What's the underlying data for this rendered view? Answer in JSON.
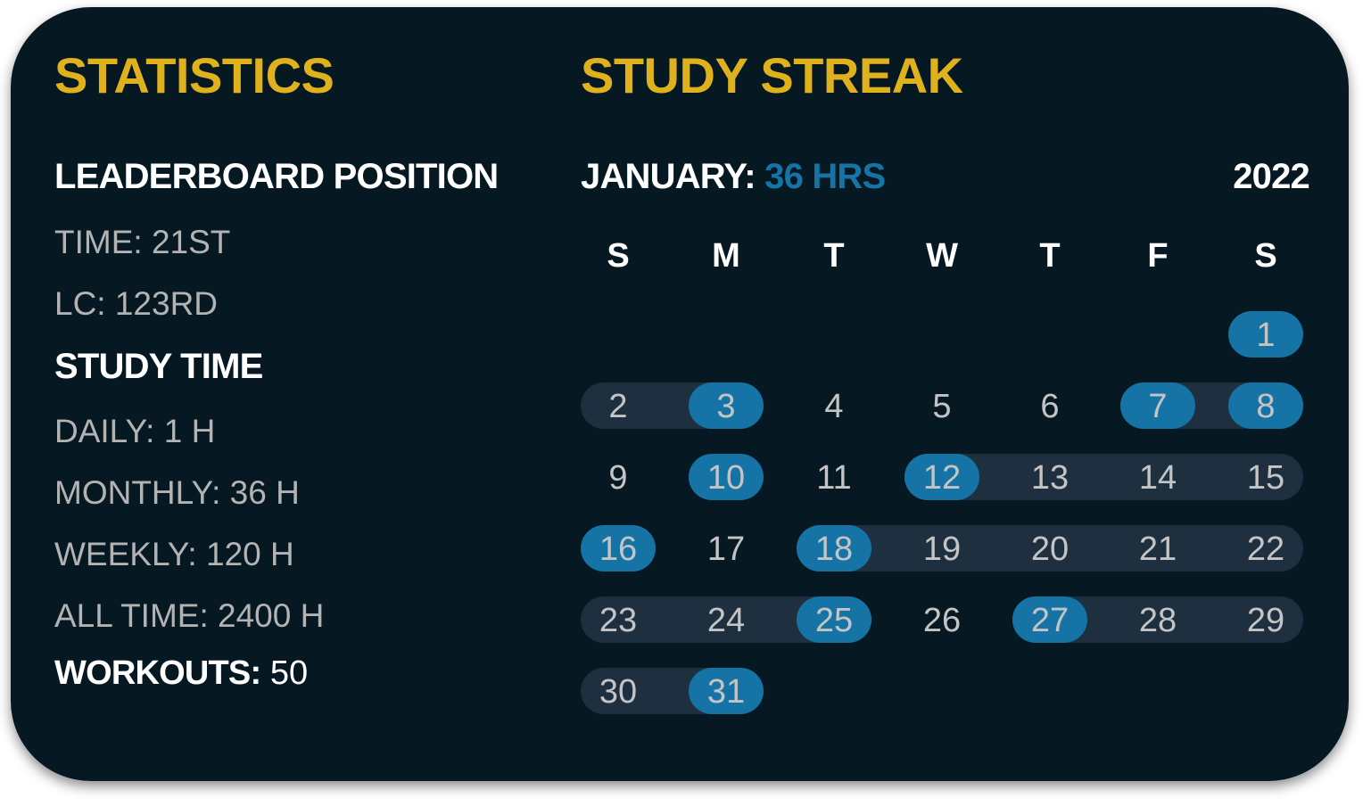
{
  "statistics": {
    "title": "STATISTICS",
    "leaderboard_heading": "LEADERBOARD POSITION",
    "leaderboard_time": "TIME: 21ST",
    "leaderboard_lc": "LC: 123RD",
    "study_time_heading": "STUDY TIME",
    "daily": "DAILY: 1 H",
    "monthly": "MONTHLY: 36 H",
    "weekly": "WEEKLY: 120 H",
    "all_time": "ALL TIME: 2400 H",
    "workouts_label": "WORKOUTS:",
    "workouts_value": " 50"
  },
  "streak": {
    "title": "STUDY STREAK",
    "month_label": "JANUARY:",
    "month_hours": " 36 HRS",
    "year": "2022",
    "weekdays": [
      "S",
      "M",
      "T",
      "W",
      "T",
      "F",
      "S"
    ],
    "first_weekday_index": 6,
    "days_in_month": 31,
    "studied_days": [
      1,
      3,
      7,
      8,
      10,
      12,
      16,
      18,
      25,
      27,
      31
    ],
    "streak_ranges": [
      [
        2,
        3
      ],
      [
        7,
        8
      ],
      [
        12,
        15
      ],
      [
        18,
        22
      ],
      [
        23,
        25
      ],
      [
        27,
        29
      ],
      [
        30,
        31
      ]
    ]
  },
  "colors": {
    "accent_yellow": "#dfb21d",
    "accent_blue": "#1673a5",
    "streak_bar": "#1e3040",
    "background": "#061923"
  }
}
